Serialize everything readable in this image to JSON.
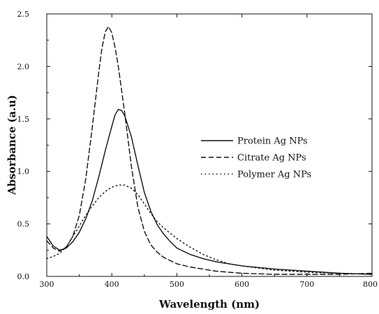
{
  "chart_data": {
    "type": "line",
    "title": "",
    "xlabel": "Wavelength (nm)",
    "ylabel": "Absorbance (a.u)",
    "xlim": [
      300,
      800
    ],
    "ylim": [
      0.0,
      2.5
    ],
    "x_ticks": [
      300,
      400,
      500,
      600,
      700,
      800
    ],
    "x_tick_labels": [
      "300",
      "400",
      "500",
      "600",
      "700",
      "800"
    ],
    "y_ticks": [
      0.0,
      0.5,
      1.0,
      1.5,
      2.0,
      2.5
    ],
    "y_tick_labels": [
      "0.0",
      "0.5",
      "1.0",
      "1.5",
      "2.0",
      "2.5"
    ],
    "grid": false,
    "legend_position": "right",
    "series": [
      {
        "name": "Protein Ag NPs",
        "line_style": "solid",
        "x": [
          300,
          310,
          320,
          330,
          340,
          350,
          360,
          370,
          380,
          390,
          400,
          405,
          410,
          415,
          420,
          430,
          440,
          450,
          460,
          470,
          480,
          490,
          500,
          520,
          540,
          560,
          580,
          600,
          650,
          700,
          750,
          800
        ],
        "y": [
          0.38,
          0.29,
          0.25,
          0.27,
          0.33,
          0.42,
          0.55,
          0.72,
          0.95,
          1.2,
          1.43,
          1.54,
          1.59,
          1.58,
          1.53,
          1.33,
          1.06,
          0.8,
          0.62,
          0.49,
          0.4,
          0.33,
          0.27,
          0.21,
          0.17,
          0.14,
          0.12,
          0.1,
          0.07,
          0.05,
          0.03,
          0.02
        ]
      },
      {
        "name": "Citrate Ag NPs",
        "line_style": "dashed",
        "x": [
          300,
          310,
          320,
          330,
          340,
          350,
          360,
          370,
          380,
          385,
          390,
          395,
          400,
          405,
          410,
          420,
          430,
          440,
          450,
          460,
          470,
          480,
          490,
          500,
          520,
          540,
          560,
          600,
          650,
          700,
          750,
          800
        ],
        "y": [
          0.34,
          0.27,
          0.24,
          0.28,
          0.38,
          0.58,
          0.93,
          1.42,
          1.95,
          2.18,
          2.33,
          2.38,
          2.32,
          2.18,
          2.0,
          1.55,
          1.05,
          0.66,
          0.43,
          0.3,
          0.23,
          0.18,
          0.15,
          0.12,
          0.09,
          0.07,
          0.05,
          0.03,
          0.02,
          0.02,
          0.02,
          0.03
        ]
      },
      {
        "name": "Polymer Ag NPs",
        "line_style": "dotted",
        "x": [
          300,
          310,
          320,
          330,
          340,
          350,
          360,
          370,
          380,
          390,
          400,
          410,
          420,
          430,
          440,
          450,
          460,
          470,
          480,
          490,
          500,
          520,
          540,
          560,
          580,
          600,
          650,
          700,
          750,
          800
        ],
        "y": [
          0.17,
          0.19,
          0.22,
          0.28,
          0.38,
          0.48,
          0.58,
          0.67,
          0.75,
          0.81,
          0.85,
          0.87,
          0.87,
          0.84,
          0.78,
          0.69,
          0.6,
          0.52,
          0.46,
          0.41,
          0.36,
          0.28,
          0.21,
          0.16,
          0.12,
          0.1,
          0.06,
          0.04,
          0.03,
          0.02
        ]
      }
    ]
  }
}
